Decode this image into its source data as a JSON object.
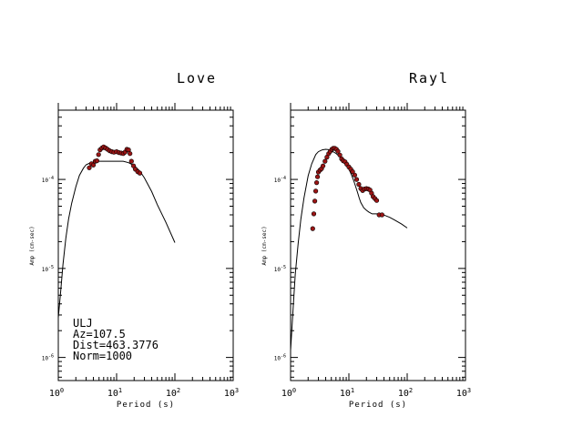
{
  "chart_data": [
    {
      "type": "scatter",
      "title": "Love",
      "xlabel": "Period (s)",
      "ylabel": "Amp (cm-sec)",
      "xscale": "log",
      "yscale": "log",
      "xlim": [
        1,
        1000
      ],
      "ylim": [
        5.5e-07,
        0.0006
      ],
      "xticks": [
        {
          "base": "10",
          "exp": "0"
        },
        {
          "base": "10",
          "exp": "1"
        },
        {
          "base": "10",
          "exp": "2"
        },
        {
          "base": "10",
          "exp": "3"
        }
      ],
      "yticks": [
        {
          "base": "10",
          "exp": "-4"
        },
        {
          "base": "10",
          "exp": "-5"
        },
        {
          "base": "10",
          "exp": "-6"
        }
      ],
      "annotation": [
        "ULJ",
        "Az=107.5",
        "Dist=463.3776",
        "Norm=1000"
      ],
      "series": [
        {
          "kind": "line",
          "x": [
            1.0,
            1.1,
            1.2,
            1.35,
            1.5,
            1.7,
            2.0,
            2.3,
            2.7,
            3.0,
            3.5,
            4.0,
            5.0,
            6.0,
            8.0,
            10.0,
            13.0,
            16.0,
            20.0,
            25.0,
            30.0,
            40.0,
            50.0,
            70.0,
            100.0
          ],
          "y": [
            2.8e-06,
            5.5e-06,
            1.1e-05,
            2.2e-05,
            3.6e-05,
            5.4e-05,
            8.3e-05,
            0.000111,
            0.000134,
            0.000146,
            0.000153,
            0.000156,
            0.00016,
            0.00016,
            0.00016,
            0.00016,
            0.00016,
            0.000154,
            0.000143,
            0.000124,
            0.000104,
            7.3e-05,
            5.2e-05,
            3.3e-05,
            1.95e-05
          ]
        },
        {
          "kind": "points",
          "x": [
            3.4,
            3.7,
            4.0,
            4.3,
            4.6,
            4.9,
            5.2,
            5.6,
            6.0,
            6.5,
            7.0,
            7.6,
            8.3,
            9.0,
            10.0,
            11.0,
            12.0,
            13.0,
            14.0,
            15.0,
            16.0,
            17.0,
            18.0,
            19.5,
            21.0,
            23.0,
            25.0
          ],
          "y": [
            0.000135,
            0.00015,
            0.000145,
            0.00016,
            0.000162,
            0.00019,
            0.000215,
            0.000225,
            0.000232,
            0.000225,
            0.000218,
            0.00021,
            0.000205,
            0.000202,
            0.000205,
            0.0002,
            0.000198,
            0.000195,
            0.000203,
            0.000218,
            0.000215,
            0.000195,
            0.00016,
            0.000142,
            0.00013,
            0.000122,
            0.000118
          ]
        }
      ]
    },
    {
      "type": "scatter",
      "title": "Rayl",
      "xlabel": "Period (s)",
      "ylabel": "Amp (cm-sec)",
      "xscale": "log",
      "yscale": "log",
      "xlim": [
        1,
        1000
      ],
      "ylim": [
        5.5e-07,
        0.0006
      ],
      "xticks": [
        {
          "base": "10",
          "exp": "0"
        },
        {
          "base": "10",
          "exp": "1"
        },
        {
          "base": "10",
          "exp": "2"
        },
        {
          "base": "10",
          "exp": "3"
        }
      ],
      "yticks": [
        {
          "base": "10",
          "exp": "-4"
        },
        {
          "base": "10",
          "exp": "-5"
        },
        {
          "base": "10",
          "exp": "-6"
        }
      ],
      "series": [
        {
          "kind": "line",
          "x": [
            1.0,
            1.1,
            1.2,
            1.35,
            1.5,
            1.7,
            2.0,
            2.3,
            2.7,
            3.0,
            3.5,
            4.0,
            4.5,
            5.0,
            6.0,
            7.0,
            8.0,
            9.0,
            10.0,
            11.0,
            12.0,
            13.0,
            14.0,
            15.0,
            16.0,
            18.0,
            20.0,
            22.0,
            25.0,
            30.0,
            35.0,
            40.0,
            50.0,
            60.0,
            80.0,
            100.0
          ],
          "y": [
            1.2e-06,
            3.3e-06,
            8.5e-06,
            1.9e-05,
            3.6e-05,
            6.2e-05,
            0.00011,
            0.00015,
            0.00019,
            0.000205,
            0.000215,
            0.000218,
            0.000216,
            0.00021,
            0.000196,
            0.00018,
            0.000165,
            0.000148,
            0.000131,
            0.000114,
            9.8e-05,
            8.4e-05,
            7.2e-05,
            6.2e-05,
            5.5e-05,
            4.8e-05,
            4.5e-05,
            4.3e-05,
            4.1e-05,
            4.1e-05,
            4.02e-05,
            3.98e-05,
            3.75e-05,
            3.52e-05,
            3.15e-05,
            2.85e-05
          ]
        },
        {
          "kind": "points",
          "x": [
            2.4,
            2.5,
            2.6,
            2.7,
            2.8,
            2.9,
            3.0,
            3.2,
            3.4,
            3.6,
            3.9,
            4.2,
            4.5,
            4.8,
            5.1,
            5.4,
            5.7,
            6.1,
            6.5,
            7.0,
            7.5,
            8.0,
            8.6,
            9.2,
            10.0,
            10.8,
            11.6,
            12.6,
            13.6,
            14.8,
            16.0,
            17.2,
            18.5,
            20.0,
            21.5,
            23.0,
            24.5,
            26.0,
            28.0,
            30.0,
            33.0,
            37.0
          ],
          "y": [
            2.8e-05,
            4.1e-05,
            5.7e-05,
            7.4e-05,
            9.2e-05,
            0.000107,
            0.000121,
            0.000127,
            0.000132,
            0.000142,
            0.00016,
            0.000178,
            0.000195,
            0.000207,
            0.000218,
            0.000224,
            0.000224,
            0.000218,
            0.000207,
            0.000188,
            0.00017,
            0.000162,
            0.000158,
            0.000148,
            0.000138,
            0.00013,
            0.000122,
            0.000112,
            0.0001,
            8.8e-05,
            7.9e-05,
            7.5e-05,
            7.8e-05,
            7.9e-05,
            7.8e-05,
            7.6e-05,
            7e-05,
            6.4e-05,
            6.1e-05,
            5.8e-05,
            4e-05,
            4e-05
          ]
        }
      ]
    }
  ],
  "colors": {
    "axis": "#000000",
    "marker_fill": "#9b1515",
    "marker_edge": "#000000",
    "line": "#000000"
  }
}
